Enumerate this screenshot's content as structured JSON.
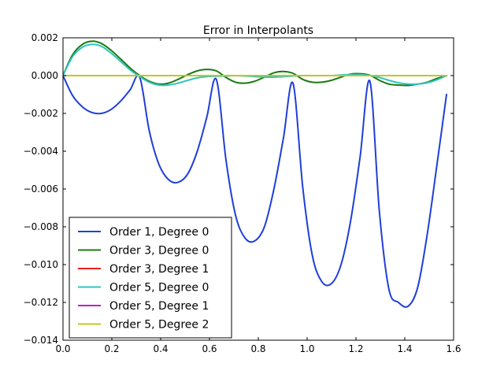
{
  "chart_data": {
    "type": "line",
    "title": "Error in Interpolants",
    "xlabel": "",
    "ylabel": "",
    "xlim": [
      0.0,
      1.6
    ],
    "ylim": [
      -0.014,
      0.002
    ],
    "x_ticks": [
      0.0,
      0.2,
      0.4,
      0.6,
      0.8,
      1.0,
      1.2,
      1.4,
      1.6
    ],
    "x_tick_labels": [
      "0.0",
      "0.2",
      "0.4",
      "0.6",
      "0.8",
      "1.0",
      "1.2",
      "1.4",
      "1.6"
    ],
    "y_ticks": [
      0.002,
      0.0,
      -0.002,
      -0.004,
      -0.006,
      -0.008,
      -0.01,
      -0.012,
      -0.014
    ],
    "y_tick_labels": [
      "0.002",
      "0.000",
      "−0.002",
      "−0.004",
      "−0.006",
      "−0.008",
      "−0.010",
      "−0.012",
      "−0.014"
    ],
    "grid": false,
    "legend_position": "lower-left",
    "series": [
      {
        "name": "Order 1, Degree 0",
        "color": "#1f3fd8",
        "x": [
          0.0,
          0.039,
          0.079,
          0.118,
          0.157,
          0.196,
          0.236,
          0.275,
          0.314,
          0.353,
          0.393,
          0.432,
          0.471,
          0.511,
          0.55,
          0.589,
          0.628,
          0.668,
          0.707,
          0.746,
          0.785,
          0.825,
          0.864,
          0.903,
          0.942,
          0.982,
          1.021,
          1.06,
          1.1,
          1.139,
          1.178,
          1.217,
          1.257,
          1.296,
          1.335,
          1.374,
          1.414,
          1.453,
          1.492,
          1.532,
          1.571
        ],
        "y": [
          0.0,
          -0.00105,
          -0.00165,
          -0.00195,
          -0.002,
          -0.0018,
          -0.00135,
          -0.00075,
          -8e-05,
          -0.0029,
          -0.0047,
          -0.0055,
          -0.00565,
          -0.0052,
          -0.004,
          -0.0022,
          -0.0002,
          -0.0045,
          -0.0074,
          -0.0086,
          -0.00875,
          -0.008,
          -0.006,
          -0.0033,
          -0.0004,
          -0.0059,
          -0.0095,
          -0.0109,
          -0.011,
          -0.01,
          -0.0077,
          -0.0043,
          -0.0003,
          -0.0072,
          -0.0113,
          -0.012,
          -0.0122,
          -0.0112,
          -0.0084,
          -0.0047,
          -0.001
        ]
      },
      {
        "name": "Order 3, Degree 0",
        "color": "#1a7a12",
        "x": [
          0.0,
          0.039,
          0.079,
          0.118,
          0.157,
          0.196,
          0.236,
          0.275,
          0.314,
          0.353,
          0.393,
          0.432,
          0.471,
          0.511,
          0.55,
          0.589,
          0.628,
          0.668,
          0.707,
          0.746,
          0.785,
          0.825,
          0.864,
          0.903,
          0.942,
          0.982,
          1.021,
          1.06,
          1.1,
          1.139,
          1.178,
          1.217,
          1.257,
          1.296,
          1.335,
          1.374,
          1.414,
          1.453,
          1.492,
          1.532,
          1.571
        ],
        "y": [
          0.0,
          0.0011,
          0.00165,
          0.00182,
          0.0017,
          0.00135,
          0.00088,
          0.0004,
          0.0,
          -0.0003,
          -0.00045,
          -0.0004,
          -0.0002,
          5e-05,
          0.00025,
          0.00033,
          0.00025,
          -0.0001,
          -0.00035,
          -0.0004,
          -0.0003,
          -8e-05,
          0.00015,
          0.00022,
          0.00012,
          -0.0002,
          -0.00035,
          -0.00035,
          -0.00025,
          -8e-05,
          8e-05,
          0.0001,
          2e-05,
          -0.00025,
          -0.00045,
          -0.0005,
          -0.00052,
          -0.00045,
          -0.00035,
          -0.00015,
          0.0
        ]
      },
      {
        "name": "Order 3, Degree 1",
        "color": "#e8201c",
        "x": [
          0.0,
          0.393,
          0.785,
          1.178,
          1.571
        ],
        "y": [
          0.0,
          0.0,
          0.0,
          0.0,
          0.0
        ]
      },
      {
        "name": "Order 5, Degree 0",
        "color": "#2ec4c0",
        "x": [
          0.0,
          0.039,
          0.079,
          0.118,
          0.157,
          0.196,
          0.236,
          0.275,
          0.314,
          0.353,
          0.393,
          0.432,
          0.471,
          0.511,
          0.55,
          0.589,
          0.628,
          0.668,
          0.707,
          0.746,
          0.785,
          0.825,
          0.864,
          0.903,
          0.942,
          0.982,
          1.021,
          1.06,
          1.1,
          1.139,
          1.178,
          1.217,
          1.257,
          1.296,
          1.335,
          1.374,
          1.414,
          1.453,
          1.492,
          1.532,
          1.571
        ],
        "y": [
          0.0,
          0.001,
          0.0015,
          0.00165,
          0.00155,
          0.0012,
          0.00075,
          0.0003,
          -5e-05,
          -0.00035,
          -0.0005,
          -0.0005,
          -0.0004,
          -0.00025,
          -0.00012,
          -5e-05,
          -3e-05,
          -2e-05,
          0.0,
          -2e-05,
          -5e-05,
          -8e-05,
          -8e-05,
          -5e-05,
          -2e-05,
          0.0,
          0.0,
          0.0,
          0.0,
          3e-05,
          5e-05,
          5e-05,
          0.0,
          -0.0001,
          -0.00025,
          -0.00038,
          -0.00045,
          -0.00045,
          -0.00038,
          -0.00022,
          0.0
        ]
      },
      {
        "name": "Order 5, Degree 1",
        "color": "#c020c0",
        "x": [
          0.0,
          0.393,
          0.785,
          1.178,
          1.571
        ],
        "y": [
          0.0,
          0.0,
          0.0,
          0.0,
          0.0
        ]
      },
      {
        "name": "Order 5, Degree 2",
        "color": "#c4c420",
        "x": [
          0.0,
          0.393,
          0.785,
          1.178,
          1.571
        ],
        "y": [
          0.0,
          0.0,
          0.0,
          0.0,
          0.0
        ]
      }
    ]
  }
}
